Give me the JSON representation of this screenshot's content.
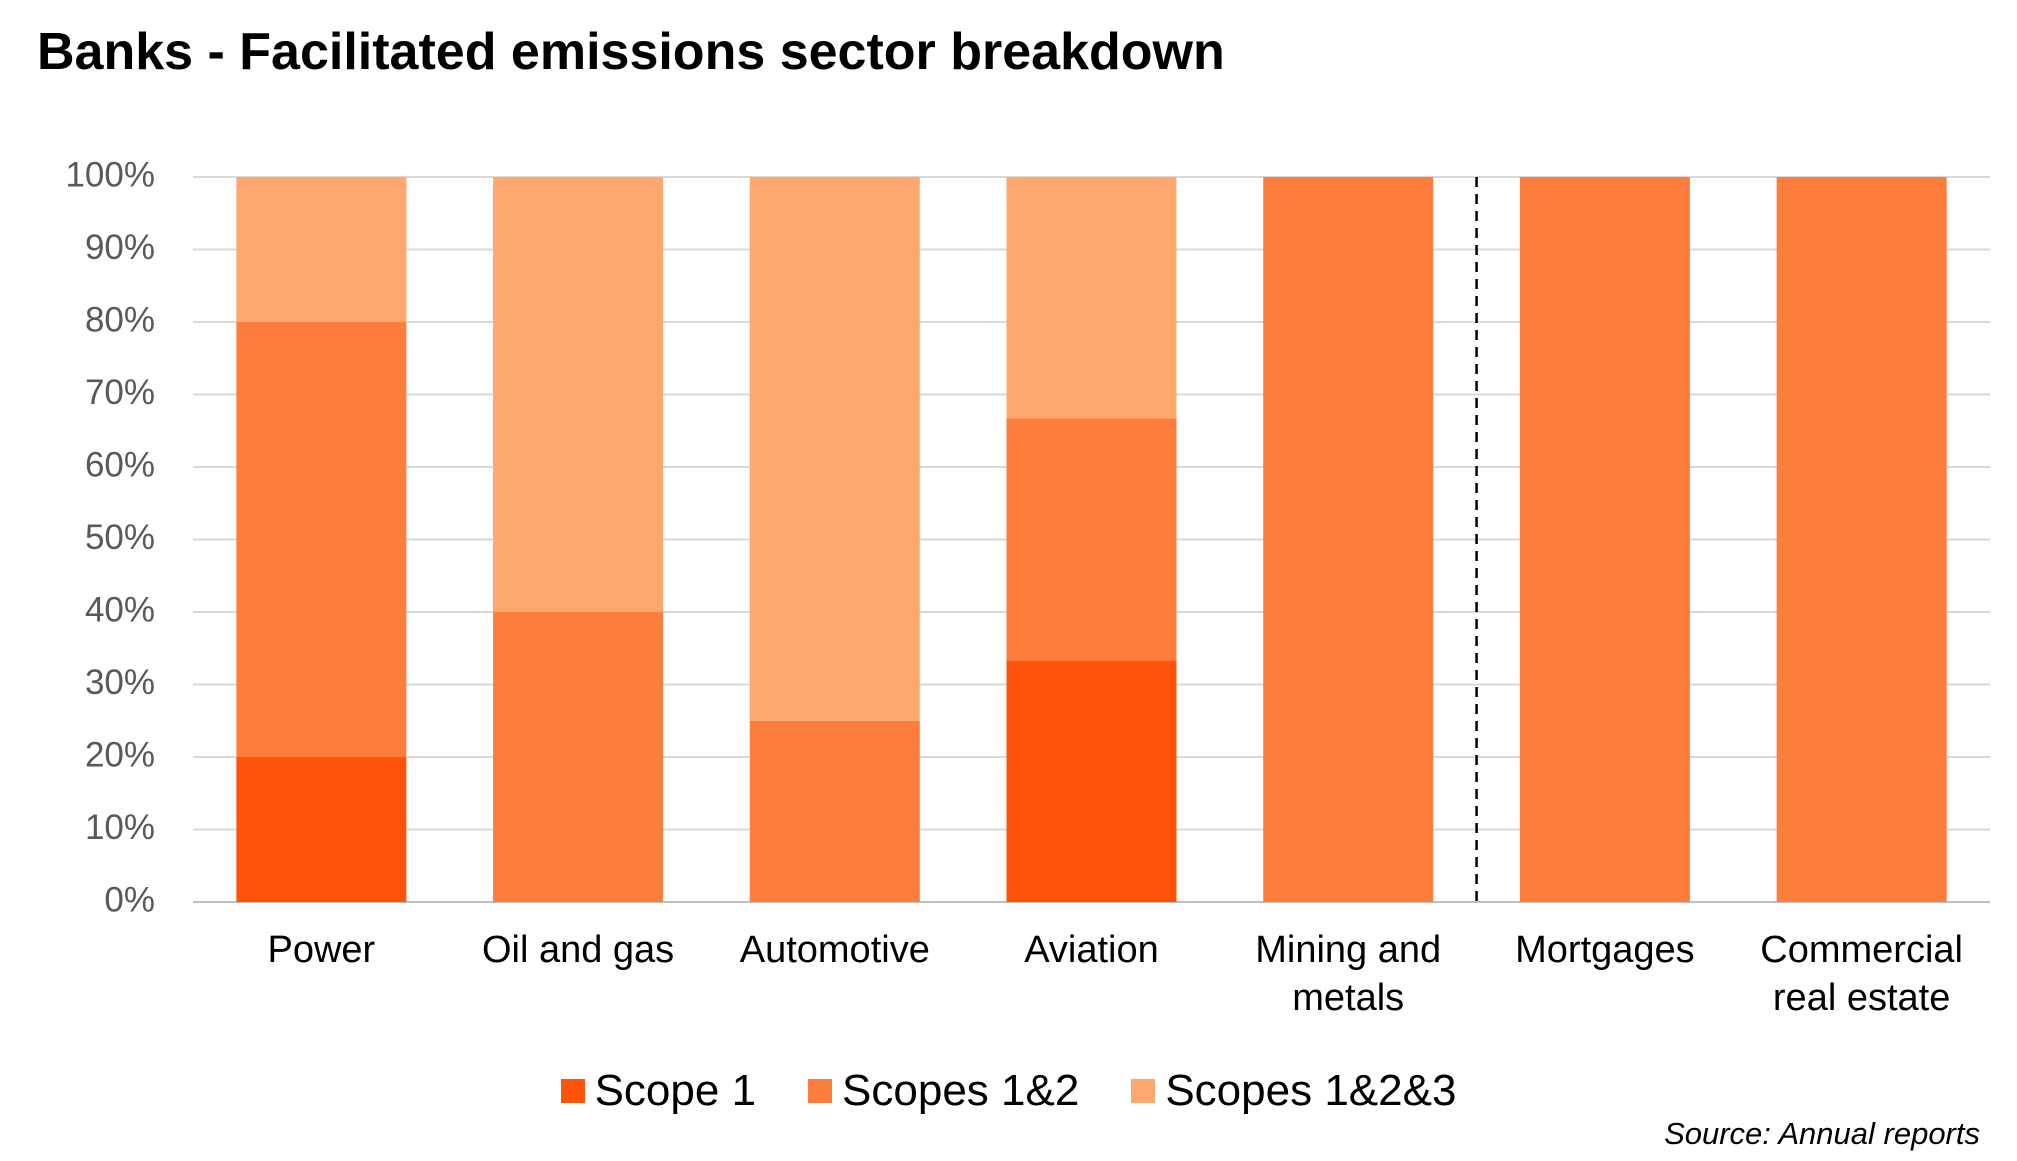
{
  "chart_data": {
    "type": "stacked_bar",
    "title": "Banks - Facilitated emissions sector breakdown",
    "categories": [
      "Power",
      "Oil and gas",
      "Automotive",
      "Aviation",
      "Mining and metals",
      "Mortgages",
      "Commercial real estate"
    ],
    "series": [
      {
        "name": "Scope 1",
        "color": "#ff5309",
        "values": [
          20,
          0,
          0,
          33.3,
          0,
          0,
          0
        ]
      },
      {
        "name": "Scopes 1&2",
        "color": "#fd7e3c",
        "values": [
          60,
          40,
          25,
          33.4,
          100,
          100,
          100
        ]
      },
      {
        "name": "Scopes 1&2&3",
        "color": "#fea870",
        "values": [
          20,
          60,
          75,
          33.3,
          0,
          0,
          0
        ]
      }
    ],
    "ylim": [
      0,
      100
    ],
    "yticks": [
      {
        "value": 0,
        "label": "0%"
      },
      {
        "value": 10,
        "label": "10%"
      },
      {
        "value": 20,
        "label": "20%"
      },
      {
        "value": 30,
        "label": "30%"
      },
      {
        "value": 40,
        "label": "40%"
      },
      {
        "value": 50,
        "label": "50%"
      },
      {
        "value": 60,
        "label": "60%"
      },
      {
        "value": 70,
        "label": "70%"
      },
      {
        "value": 80,
        "label": "80%"
      },
      {
        "value": 90,
        "label": "90%"
      },
      {
        "value": 100,
        "label": "100%"
      }
    ],
    "grid": true,
    "legend": "bottom",
    "source": "Source: Annual reports"
  }
}
